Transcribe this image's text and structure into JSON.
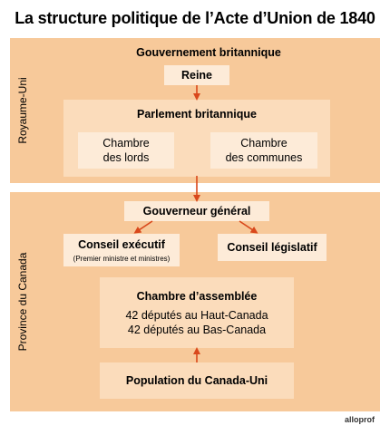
{
  "title": "La structure politique de l’Acte d’Union de 1840",
  "uk": {
    "side_label": "Royaume-Uni",
    "heading": "Gouvernement britannique",
    "queen": "Reine",
    "parliament": "Parlement britannique",
    "lords_line1": "Chambre",
    "lords_line2": "des lords",
    "commons_line1": "Chambre",
    "commons_line2": "des communes"
  },
  "canada": {
    "side_label": "Province du Canada",
    "governor": "Gouverneur général",
    "exec_council": "Conseil exécutif",
    "exec_note": "(Premier ministre et ministres)",
    "leg_council": "Conseil législatif",
    "assembly": "Chambre d’assemblée",
    "assembly_line1": "42 députés au Haut-Canada",
    "assembly_line2": "42 députés au Bas-Canada",
    "population": "Population du Canada-Uni"
  },
  "logo": "alloprof",
  "colors": {
    "outer_panel": "#f7c99a",
    "inner_panel": "#fbdcbb",
    "box": "#fdebd8",
    "arrow": "#d9481c"
  }
}
